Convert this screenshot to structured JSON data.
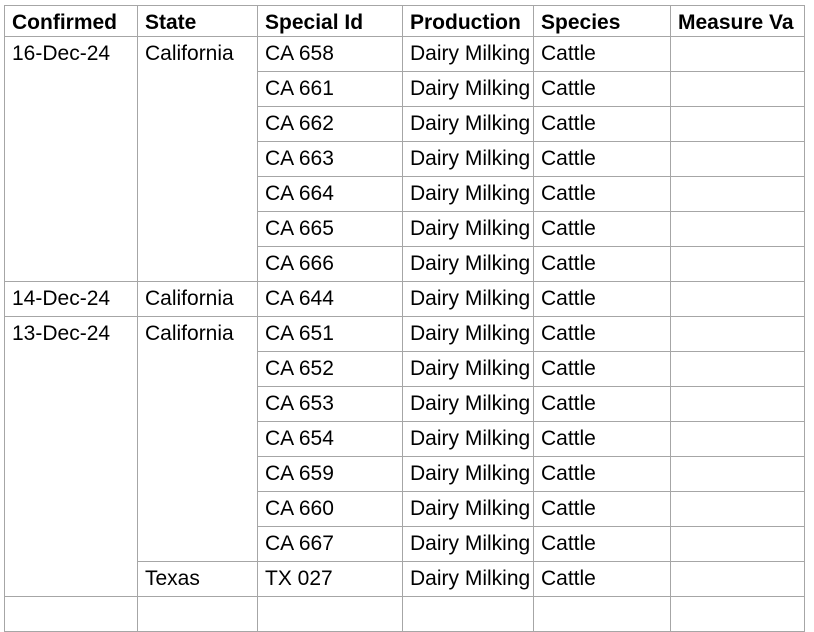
{
  "styles": {
    "background": "#ffffff",
    "border_color": "#a6a6a6",
    "text_color": "#000000"
  },
  "table": {
    "columns": [
      {
        "id": "confirmed",
        "label": "Confirmed"
      },
      {
        "id": "state",
        "label": "State"
      },
      {
        "id": "special_id",
        "label": "Special Id"
      },
      {
        "id": "production",
        "label": "Production"
      },
      {
        "id": "species",
        "label": "Species"
      },
      {
        "id": "measure_value",
        "label": "Measure Va"
      }
    ],
    "groups": [
      {
        "confirmed": "16-Dec-24",
        "states": [
          {
            "state": "California",
            "rows": [
              {
                "special_id": "CA 658",
                "production": "Dairy Milking",
                "species": "Cattle",
                "measure_value": ""
              },
              {
                "special_id": "CA 661",
                "production": "Dairy Milking",
                "species": "Cattle",
                "measure_value": ""
              },
              {
                "special_id": "CA 662",
                "production": "Dairy Milking",
                "species": "Cattle",
                "measure_value": ""
              },
              {
                "special_id": "CA 663",
                "production": "Dairy Milking",
                "species": "Cattle",
                "measure_value": ""
              },
              {
                "special_id": "CA 664",
                "production": "Dairy Milking",
                "species": "Cattle",
                "measure_value": ""
              },
              {
                "special_id": "CA 665",
                "production": "Dairy Milking",
                "species": "Cattle",
                "measure_value": ""
              },
              {
                "special_id": "CA 666",
                "production": "Dairy Milking",
                "species": "Cattle",
                "measure_value": ""
              }
            ]
          }
        ]
      },
      {
        "confirmed": "14-Dec-24",
        "states": [
          {
            "state": "California",
            "rows": [
              {
                "special_id": "CA 644",
                "production": "Dairy Milking",
                "species": "Cattle",
                "measure_value": ""
              }
            ]
          }
        ]
      },
      {
        "confirmed": "13-Dec-24",
        "states": [
          {
            "state": "California",
            "rows": [
              {
                "special_id": "CA 651",
                "production": "Dairy Milking",
                "species": "Cattle",
                "measure_value": ""
              },
              {
                "special_id": "CA 652",
                "production": "Dairy Milking",
                "species": "Cattle",
                "measure_value": ""
              },
              {
                "special_id": "CA 653",
                "production": "Dairy Milking",
                "species": "Cattle",
                "measure_value": ""
              },
              {
                "special_id": "CA 654",
                "production": "Dairy Milking",
                "species": "Cattle",
                "measure_value": ""
              },
              {
                "special_id": "CA 659",
                "production": "Dairy Milking",
                "species": "Cattle",
                "measure_value": ""
              },
              {
                "special_id": "CA 660",
                "production": "Dairy Milking",
                "species": "Cattle",
                "measure_value": ""
              },
              {
                "special_id": "CA 667",
                "production": "Dairy Milking",
                "species": "Cattle",
                "measure_value": ""
              }
            ]
          },
          {
            "state": "Texas",
            "rows": [
              {
                "special_id": "TX 027",
                "production": "Dairy Milking",
                "species": "Cattle",
                "measure_value": ""
              }
            ]
          }
        ]
      },
      {
        "confirmed": "",
        "states": [
          {
            "state": "",
            "rows": [
              {
                "special_id": "",
                "production": "",
                "species": "",
                "measure_value": ""
              }
            ]
          }
        ]
      }
    ]
  }
}
